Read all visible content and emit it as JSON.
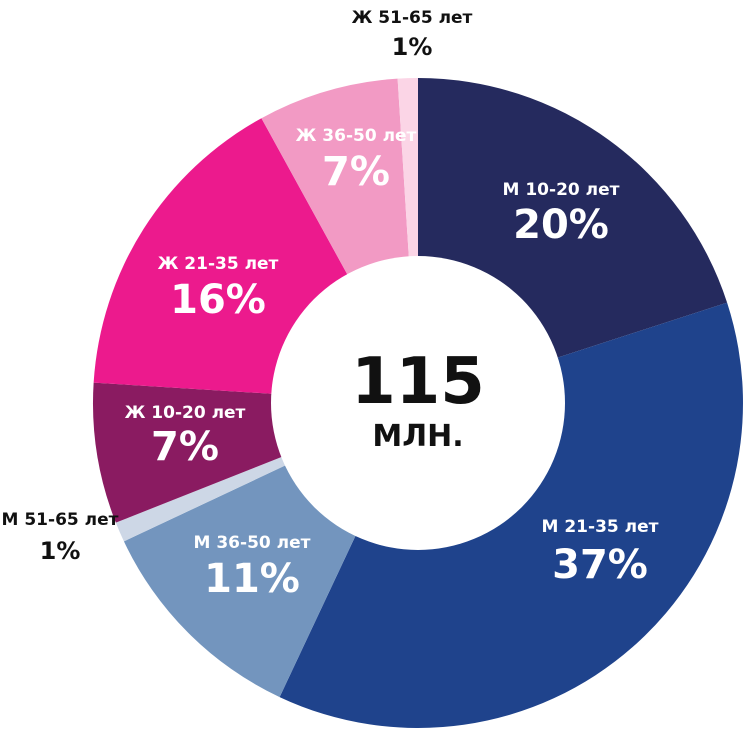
{
  "chart_data": {
    "type": "pie",
    "donut": true,
    "center_total": "115",
    "center_unit": "МЛН.",
    "slices": [
      {
        "label": "М 10-20 лет",
        "value": 20,
        "value_label": "20%",
        "color": "#252a5e",
        "text_color": "#ffffff"
      },
      {
        "label": "М 21-35 лет",
        "value": 37,
        "value_label": "37%",
        "color": "#1f438c",
        "text_color": "#ffffff"
      },
      {
        "label": "М 36-50 лет",
        "value": 11,
        "value_label": "11%",
        "color": "#7395be",
        "text_color": "#ffffff"
      },
      {
        "label": "М 51-65 лет",
        "value": 1,
        "value_label": "1%",
        "color": "#cdd7e6",
        "text_color": "#111111"
      },
      {
        "label": "Ж 10-20 лет",
        "value": 7,
        "value_label": "7%",
        "color": "#8a1b61",
        "text_color": "#ffffff"
      },
      {
        "label": "Ж 21-35 лет",
        "value": 16,
        "value_label": "16%",
        "color": "#ec1a8d",
        "text_color": "#ffffff"
      },
      {
        "label": "Ж 36-50 лет",
        "value": 7,
        "value_label": "7%",
        "color": "#f29ac4",
        "text_color": "#ffffff"
      },
      {
        "label": "Ж 51-65 лет",
        "value": 1,
        "value_label": "1%",
        "color": "#fbd5e6",
        "text_color": "#111111"
      }
    ]
  }
}
